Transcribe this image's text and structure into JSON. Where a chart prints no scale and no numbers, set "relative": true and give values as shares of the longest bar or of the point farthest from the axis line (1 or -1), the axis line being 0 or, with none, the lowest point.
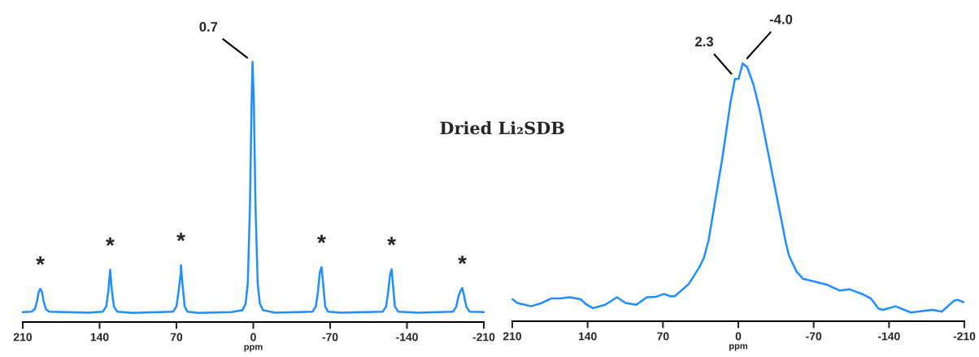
{
  "chart_data": [
    {
      "type": "line",
      "title": "Dried Li₂SDB",
      "xlabel": "ppm",
      "xlim": [
        210,
        -210
      ],
      "xticks": [
        210,
        140,
        70,
        0,
        -70,
        -140,
        -210
      ],
      "relative": true,
      "tick_labels": "x",
      "series": [
        {
          "color": "#1f8fff",
          "x": [
            210,
            202,
            199,
            197,
            195.5,
            194,
            192.5,
            191,
            189,
            186,
            150,
            137,
            134,
            132,
            130.4,
            128.8,
            127,
            124,
            110,
            73,
            70,
            68,
            66,
            65.9,
            64.4,
            62.5,
            60,
            50,
            20,
            10,
            7,
            5,
            3,
            1.5,
            0.7,
            -0.5,
            -2,
            -4,
            -6,
            -9,
            -20,
            -54,
            -57,
            -59,
            -60.6,
            -62.2,
            -63.8,
            -65.5,
            -68,
            -80,
            -118,
            -121,
            -123,
            -124.5,
            -126,
            -127.5,
            -129,
            -132,
            -150,
            -182,
            -185,
            -187,
            -188.8,
            -190.4,
            -192,
            -194,
            -197,
            -210
          ],
          "values": [
            0.038,
            0.04,
            0.05,
            0.08,
            0.115,
            0.128,
            0.115,
            0.08,
            0.05,
            0.04,
            0.036,
            0.04,
            0.06,
            0.12,
            0.201,
            0.12,
            0.06,
            0.04,
            0.035,
            0.04,
            0.06,
            0.12,
            0.19,
            0.219,
            0.14,
            0.06,
            0.04,
            0.035,
            0.038,
            0.045,
            0.07,
            0.15,
            0.45,
            0.85,
            1.0,
            0.85,
            0.45,
            0.15,
            0.07,
            0.045,
            0.036,
            0.04,
            0.06,
            0.12,
            0.19,
            0.211,
            0.14,
            0.06,
            0.04,
            0.036,
            0.04,
            0.06,
            0.12,
            0.18,
            0.203,
            0.13,
            0.06,
            0.04,
            0.036,
            0.04,
            0.06,
            0.1,
            0.12,
            0.131,
            0.1,
            0.06,
            0.04,
            0.038
          ]
        }
      ],
      "annotations": [
        {
          "text": "0.7",
          "x": 0.7,
          "y": 1.0
        },
        {
          "text": "*",
          "x": 194,
          "y": 0.128
        },
        {
          "text": "*",
          "x": 130.4,
          "y": 0.201
        },
        {
          "text": "*",
          "x": 65.9,
          "y": 0.219
        },
        {
          "text": "*",
          "x": -62.2,
          "y": 0.211
        },
        {
          "text": "*",
          "x": -126,
          "y": 0.203
        },
        {
          "text": "*",
          "x": -190.4,
          "y": 0.131
        }
      ]
    },
    {
      "type": "line",
      "xlabel": "ppm",
      "xlim": [
        210,
        -210
      ],
      "xticks": [
        210,
        140,
        70,
        0,
        -70,
        -140,
        -210
      ],
      "relative": true,
      "tick_labels": "x",
      "series": [
        {
          "color": "#1f8fff",
          "x": [
            209.7,
            205.4,
            192.5,
            182.4,
            174,
            165.2,
            156.6,
            146.5,
            140.8,
            135.1,
            123.6,
            112.7,
            104.9,
            94.9,
            84.9,
            76.3,
            69.1,
            63.4,
            59.1,
            46.1,
            36.1,
            31.9,
            27.6,
            14.6,
            7.4,
            3.1,
            -0.3,
            -4.0,
            -8.3,
            -14.1,
            -19.8,
            -28.4,
            -44.2,
            -47.1,
            -54.2,
            -59.9,
            -68.6,
            -82.9,
            -94.3,
            -103,
            -115.9,
            -123,
            -130.2,
            -134.5,
            -146,
            -160.3,
            -180.4,
            -189,
            -200.5,
            -203.4,
            -209.1
          ],
          "values": [
            0.085,
            0.071,
            0.058,
            0.071,
            0.088,
            0.088,
            0.093,
            0.085,
            0.064,
            0.051,
            0.064,
            0.093,
            0.071,
            0.064,
            0.093,
            0.095,
            0.106,
            0.097,
            0.097,
            0.144,
            0.21,
            0.247,
            0.314,
            0.639,
            0.846,
            0.94,
            0.94,
            1.0,
            0.985,
            0.918,
            0.821,
            0.639,
            0.304,
            0.254,
            0.192,
            0.165,
            0.156,
            0.141,
            0.119,
            0.124,
            0.104,
            0.089,
            0.049,
            0.044,
            0.058,
            0.034,
            0.044,
            0.037,
            0.08,
            0.083,
            0.074
          ]
        }
      ],
      "annotations": [
        {
          "text": "2.3",
          "x": 2.3,
          "y": 0.94
        },
        {
          "text": "-4.0",
          "x": -4.0,
          "y": 1.0
        }
      ]
    }
  ]
}
